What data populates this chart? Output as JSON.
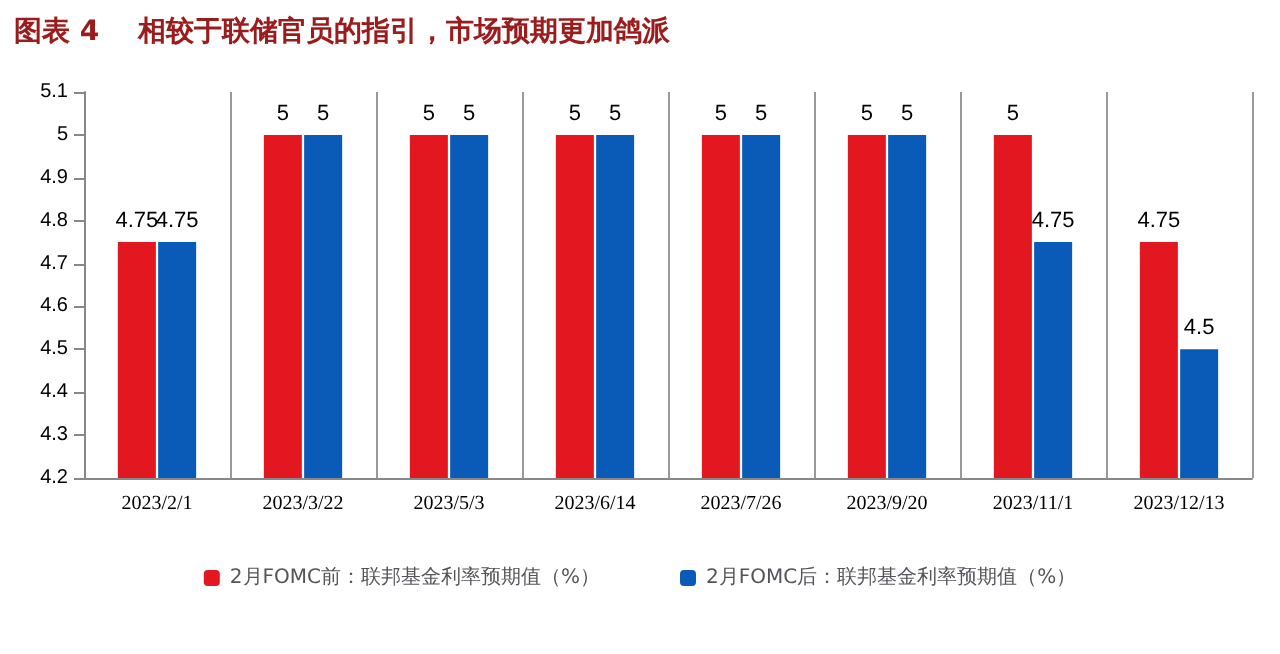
{
  "chart_data": {
    "type": "bar",
    "title": "图表 4    相较于联储官员的指引，市场预期更加鸽派",
    "categories": [
      "2023/2/1",
      "2023/3/22",
      "2023/5/3",
      "2023/6/14",
      "2023/7/26",
      "2023/9/20",
      "2023/11/1",
      "2023/12/13"
    ],
    "series": [
      {
        "name": "2月FOMC前：联邦基金利率预期值（%）",
        "color": "#e3171f",
        "values": [
          4.75,
          5,
          5,
          5,
          5,
          5,
          5,
          4.75
        ]
      },
      {
        "name": "2月FOMC后：联邦基金利率预期值（%）",
        "color": "#0a5bb8",
        "values": [
          4.75,
          5,
          5,
          5,
          5,
          5,
          4.75,
          4.5
        ]
      }
    ],
    "ylim": [
      4.2,
      5.1
    ],
    "yticks": [
      4.2,
      4.3,
      4.4,
      4.5,
      4.6,
      4.7,
      4.8,
      4.9,
      5,
      5.1
    ],
    "data_labels": true,
    "grid": "x",
    "legend": "bottom"
  }
}
